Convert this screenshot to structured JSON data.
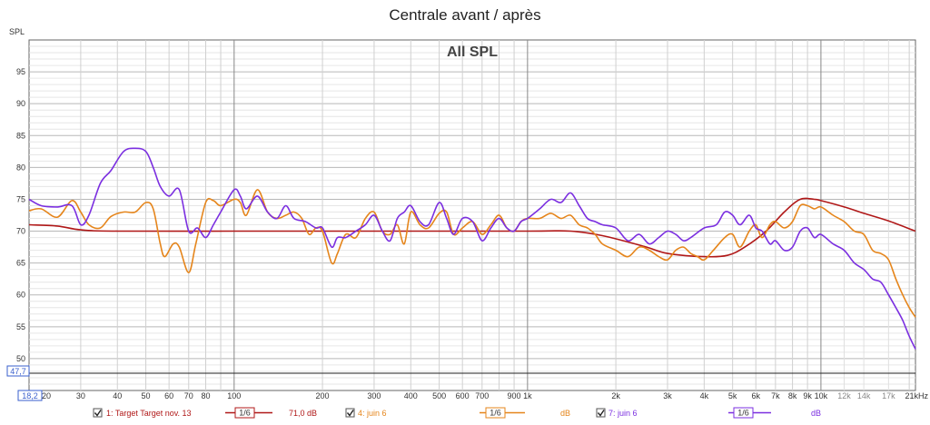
{
  "chart_data": {
    "type": "line",
    "title": "Centrale avant / après",
    "subtitle": "All SPL",
    "ylabel": "SPL",
    "x_scale": "log",
    "xlim": [
      20,
      21000
    ],
    "ylim": [
      45,
      100
    ],
    "yticks": [
      50,
      55,
      60,
      65,
      70,
      75,
      80,
      85,
      90,
      95
    ],
    "xticks": [
      {
        "v": 20,
        "label": "20"
      },
      {
        "v": 30,
        "label": "30"
      },
      {
        "v": 40,
        "label": "40"
      },
      {
        "v": 50,
        "label": "50"
      },
      {
        "v": 60,
        "label": "60"
      },
      {
        "v": 70,
        "label": "70"
      },
      {
        "v": 80,
        "label": "80"
      },
      {
        "v": 100,
        "label": "100"
      },
      {
        "v": 200,
        "label": "200"
      },
      {
        "v": 300,
        "label": "300"
      },
      {
        "v": 400,
        "label": "400"
      },
      {
        "v": 500,
        "label": "500"
      },
      {
        "v": 600,
        "label": "600"
      },
      {
        "v": 700,
        "label": "700"
      },
      {
        "v": 900,
        "label": "900"
      },
      {
        "v": 1000,
        "label": "1k"
      },
      {
        "v": 2000,
        "label": "2k"
      },
      {
        "v": 3000,
        "label": "3k"
      },
      {
        "v": 4000,
        "label": "4k"
      },
      {
        "v": 5000,
        "label": "5k"
      },
      {
        "v": 6000,
        "label": "6k"
      },
      {
        "v": 7000,
        "label": "7k"
      },
      {
        "v": 8000,
        "label": "8k"
      },
      {
        "v": 9000,
        "label": "9k"
      },
      {
        "v": 10000,
        "label": "10k"
      },
      {
        "v": 12000,
        "label": "12k",
        "minor": true
      },
      {
        "v": 14000,
        "label": "14k",
        "minor": true
      },
      {
        "v": 17000,
        "label": "17k",
        "minor": true
      },
      {
        "v": 21000,
        "label": "21kHz"
      }
    ],
    "cursor": {
      "y_readout": "47,7",
      "y": 47.7,
      "x_readout": "18,2"
    },
    "grid": true,
    "series": [
      {
        "name": "1: Target Target nov. 13",
        "color": "#b01818",
        "smoothing": "1/6",
        "legend_value": "71,0 dB",
        "points": [
          [
            20,
            71.0
          ],
          [
            25,
            70.8
          ],
          [
            30,
            70.2
          ],
          [
            40,
            70.0
          ],
          [
            100,
            70.0
          ],
          [
            300,
            70.0
          ],
          [
            1000,
            70.0
          ],
          [
            1400,
            70.0
          ],
          [
            1800,
            69.3
          ],
          [
            2500,
            67.6
          ],
          [
            3000,
            66.5
          ],
          [
            4000,
            66.0
          ],
          [
            4800,
            66.2
          ],
          [
            5500,
            67.5
          ],
          [
            6500,
            70.0
          ],
          [
            7500,
            73.0
          ],
          [
            8500,
            75.0
          ],
          [
            9500,
            75.0
          ],
          [
            10000,
            74.8
          ],
          [
            12000,
            73.8
          ],
          [
            14000,
            72.8
          ],
          [
            17000,
            71.6
          ],
          [
            21000,
            70.0
          ]
        ]
      },
      {
        "name": "4: juin 6",
        "color": "#e5851b",
        "smoothing": "1/6",
        "legend_value": "dB",
        "points": [
          [
            20,
            73.2
          ],
          [
            22,
            73.5
          ],
          [
            25,
            72.2
          ],
          [
            28,
            74.8
          ],
          [
            30,
            73.0
          ],
          [
            32,
            71.0
          ],
          [
            35,
            70.5
          ],
          [
            38,
            72.3
          ],
          [
            42,
            73.0
          ],
          [
            46,
            73.0
          ],
          [
            50,
            74.5
          ],
          [
            53,
            73.5
          ],
          [
            56,
            68.0
          ],
          [
            58,
            66.0
          ],
          [
            62,
            68.0
          ],
          [
            65,
            67.5
          ],
          [
            70,
            63.5
          ],
          [
            74,
            68.0
          ],
          [
            80,
            74.5
          ],
          [
            85,
            74.8
          ],
          [
            90,
            74.0
          ],
          [
            100,
            75.0
          ],
          [
            105,
            74.5
          ],
          [
            110,
            72.5
          ],
          [
            120,
            76.5
          ],
          [
            130,
            73.0
          ],
          [
            140,
            72.0
          ],
          [
            150,
            72.5
          ],
          [
            160,
            73.0
          ],
          [
            170,
            72.0
          ],
          [
            180,
            69.5
          ],
          [
            190,
            70.5
          ],
          [
            200,
            70.0
          ],
          [
            215,
            65.0
          ],
          [
            225,
            66.5
          ],
          [
            240,
            69.5
          ],
          [
            260,
            69.0
          ],
          [
            280,
            72.0
          ],
          [
            300,
            73.0
          ],
          [
            320,
            70.0
          ],
          [
            340,
            69.5
          ],
          [
            360,
            71.0
          ],
          [
            380,
            68.0
          ],
          [
            400,
            73.0
          ],
          [
            430,
            71.0
          ],
          [
            460,
            70.5
          ],
          [
            500,
            72.8
          ],
          [
            530,
            73.0
          ],
          [
            560,
            69.5
          ],
          [
            600,
            70.5
          ],
          [
            650,
            71.5
          ],
          [
            700,
            69.5
          ],
          [
            750,
            71.0
          ],
          [
            800,
            72.5
          ],
          [
            850,
            70.5
          ],
          [
            900,
            70.0
          ],
          [
            950,
            71.5
          ],
          [
            1000,
            72.0
          ],
          [
            1100,
            72.0
          ],
          [
            1200,
            72.8
          ],
          [
            1300,
            72.0
          ],
          [
            1400,
            72.5
          ],
          [
            1500,
            71.0
          ],
          [
            1600,
            70.5
          ],
          [
            1700,
            69.5
          ],
          [
            1800,
            68.0
          ],
          [
            2000,
            67.0
          ],
          [
            2200,
            66.0
          ],
          [
            2400,
            67.5
          ],
          [
            2600,
            67.0
          ],
          [
            2800,
            66.0
          ],
          [
            3000,
            65.5
          ],
          [
            3200,
            67.0
          ],
          [
            3400,
            67.5
          ],
          [
            3600,
            66.5
          ],
          [
            3800,
            66.0
          ],
          [
            4000,
            65.5
          ],
          [
            4300,
            67.0
          ],
          [
            4700,
            69.0
          ],
          [
            5000,
            69.5
          ],
          [
            5300,
            67.5
          ],
          [
            5700,
            70.0
          ],
          [
            6000,
            71.0
          ],
          [
            6300,
            69.0
          ],
          [
            6700,
            71.0
          ],
          [
            7000,
            71.5
          ],
          [
            7500,
            70.5
          ],
          [
            8000,
            71.5
          ],
          [
            8500,
            74.0
          ],
          [
            9000,
            74.0
          ],
          [
            9500,
            73.5
          ],
          [
            10000,
            73.8
          ],
          [
            11000,
            72.5
          ],
          [
            12000,
            71.5
          ],
          [
            13000,
            70.0
          ],
          [
            14000,
            69.5
          ],
          [
            15000,
            67.0
          ],
          [
            16000,
            66.5
          ],
          [
            17000,
            65.5
          ],
          [
            18000,
            62.5
          ],
          [
            19000,
            60.0
          ],
          [
            20000,
            58.0
          ],
          [
            21000,
            56.5
          ]
        ]
      },
      {
        "name": "7: juin 6",
        "color": "#7b2fe0",
        "smoothing": "1/6",
        "legend_value": "dB",
        "points": [
          [
            20,
            75.0
          ],
          [
            22,
            74.0
          ],
          [
            25,
            73.8
          ],
          [
            28,
            74.0
          ],
          [
            30,
            71.0
          ],
          [
            32,
            72.5
          ],
          [
            35,
            77.5
          ],
          [
            38,
            79.5
          ],
          [
            42,
            82.5
          ],
          [
            46,
            83.0
          ],
          [
            50,
            82.5
          ],
          [
            53,
            80.0
          ],
          [
            56,
            77.0
          ],
          [
            60,
            75.5
          ],
          [
            65,
            76.5
          ],
          [
            70,
            70.0
          ],
          [
            75,
            70.5
          ],
          [
            80,
            69.0
          ],
          [
            85,
            71.0
          ],
          [
            90,
            73.0
          ],
          [
            100,
            76.5
          ],
          [
            105,
            75.5
          ],
          [
            110,
            73.5
          ],
          [
            120,
            75.5
          ],
          [
            130,
            73.0
          ],
          [
            140,
            72.0
          ],
          [
            150,
            74.0
          ],
          [
            160,
            72.0
          ],
          [
            175,
            71.5
          ],
          [
            190,
            70.5
          ],
          [
            200,
            70.5
          ],
          [
            215,
            67.5
          ],
          [
            225,
            69.0
          ],
          [
            240,
            69.0
          ],
          [
            260,
            70.0
          ],
          [
            280,
            71.0
          ],
          [
            300,
            72.5
          ],
          [
            320,
            70.0
          ],
          [
            340,
            68.5
          ],
          [
            360,
            72.0
          ],
          [
            380,
            73.0
          ],
          [
            400,
            74.0
          ],
          [
            430,
            71.5
          ],
          [
            460,
            71.0
          ],
          [
            500,
            74.5
          ],
          [
            530,
            72.0
          ],
          [
            560,
            69.5
          ],
          [
            600,
            72.0
          ],
          [
            650,
            71.5
          ],
          [
            700,
            68.5
          ],
          [
            750,
            70.5
          ],
          [
            800,
            72.0
          ],
          [
            850,
            70.5
          ],
          [
            900,
            70.0
          ],
          [
            950,
            71.5
          ],
          [
            1000,
            72.0
          ],
          [
            1100,
            73.5
          ],
          [
            1200,
            75.0
          ],
          [
            1300,
            74.5
          ],
          [
            1400,
            76.0
          ],
          [
            1500,
            74.0
          ],
          [
            1600,
            72.0
          ],
          [
            1700,
            71.5
          ],
          [
            1800,
            71.0
          ],
          [
            2000,
            70.5
          ],
          [
            2200,
            68.5
          ],
          [
            2400,
            69.5
          ],
          [
            2600,
            68.0
          ],
          [
            2800,
            69.0
          ],
          [
            3000,
            70.0
          ],
          [
            3200,
            69.5
          ],
          [
            3400,
            68.5
          ],
          [
            3600,
            69.0
          ],
          [
            4000,
            70.5
          ],
          [
            4400,
            71.0
          ],
          [
            4700,
            73.0
          ],
          [
            5000,
            72.5
          ],
          [
            5300,
            71.0
          ],
          [
            5700,
            72.5
          ],
          [
            6000,
            70.5
          ],
          [
            6300,
            70.0
          ],
          [
            6700,
            68.0
          ],
          [
            7000,
            68.5
          ],
          [
            7500,
            67.0
          ],
          [
            8000,
            67.5
          ],
          [
            8500,
            70.0
          ],
          [
            9000,
            70.5
          ],
          [
            9500,
            69.0
          ],
          [
            10000,
            69.5
          ],
          [
            11000,
            68.0
          ],
          [
            12000,
            67.0
          ],
          [
            13000,
            65.0
          ],
          [
            14000,
            64.0
          ],
          [
            15000,
            62.5
          ],
          [
            16000,
            62.0
          ],
          [
            17000,
            60.0
          ],
          [
            18000,
            58.0
          ],
          [
            19000,
            56.0
          ],
          [
            20000,
            53.5
          ],
          [
            21000,
            51.5
          ]
        ]
      }
    ]
  }
}
